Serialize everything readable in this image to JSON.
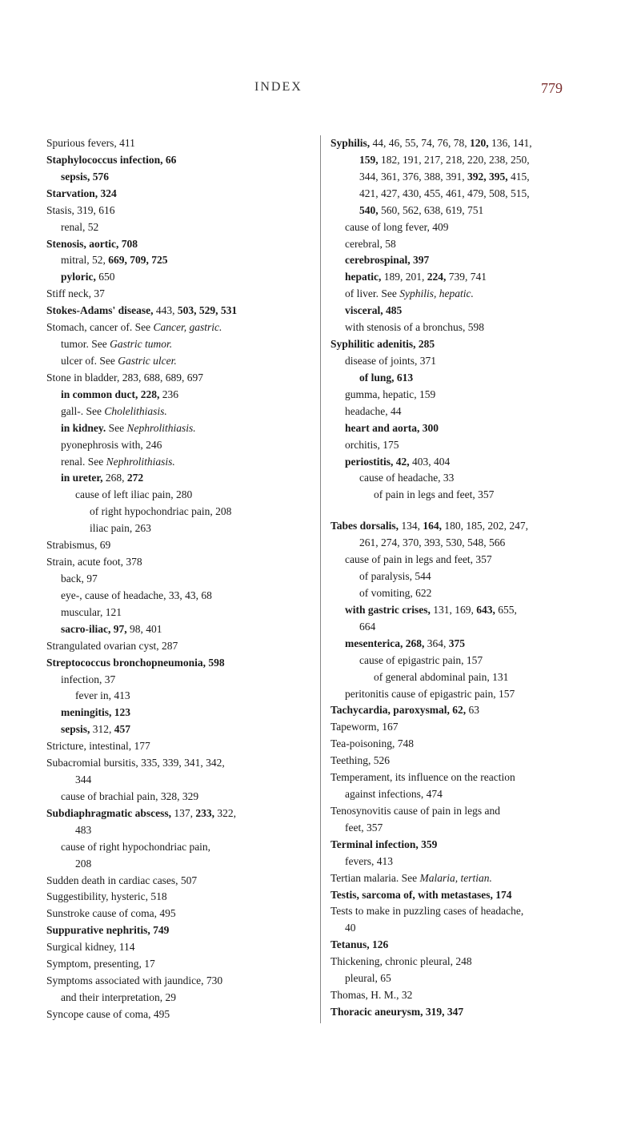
{
  "header": {
    "title": "INDEX",
    "pageNumber": "779"
  },
  "left": [
    {
      "t": "Spurious fevers, 411"
    },
    {
      "t": "Staphylococcus infection, 66",
      "b": "Staphylococcus infection, 66"
    },
    {
      "t": "sepsis, 576",
      "i": 1,
      "b": "sepsis, 576"
    },
    {
      "t": "Starvation, 324",
      "b": "Starvation, 324"
    },
    {
      "t": "Stasis, 319, 616"
    },
    {
      "t": "renal, 52",
      "i": 1
    },
    {
      "t": "Stenosis, aortic, 708",
      "b": "Stenosis, aortic, 708"
    },
    {
      "t": "mitral, 52, 669, 709, 725",
      "i": 1,
      "bp": [
        "669, 709, 725"
      ]
    },
    {
      "t": "pyloric, 650",
      "i": 1,
      "bp": [
        "pyloric,"
      ]
    },
    {
      "t": "Stiff neck, 37"
    },
    {
      "t": "Stokes-Adams' disease, 443, 503, 529, 531",
      "bp": [
        "Stokes-Adams' disease,",
        "503, 529, 531"
      ]
    },
    {
      "t": "Stomach, cancer of.   See Cancer, gastric.",
      "ip": [
        "Cancer, gastric."
      ]
    },
    {
      "t": "tumor.   See Gastric tumor.",
      "i": 1,
      "ip": [
        "Gastric tumor."
      ]
    },
    {
      "t": "ulcer of.   See Gastric ulcer.",
      "i": 1,
      "ip": [
        "Gastric ulcer."
      ]
    },
    {
      "t": "Stone in bladder, 283, 688, 689, 697"
    },
    {
      "t": "in common duct, 228, 236",
      "i": 1,
      "bp": [
        "in common duct, 228,"
      ]
    },
    {
      "t": "gall-.   See Cholelithiasis.",
      "i": 1,
      "ip": [
        "Cholelithiasis."
      ]
    },
    {
      "t": "in kidney.   See Nephrolithiasis.",
      "i": 1,
      "bp": [
        "in kidney."
      ],
      "ip": [
        "Nephrolithiasis."
      ]
    },
    {
      "t": "pyonephrosis with, 246",
      "i": 1
    },
    {
      "t": "renal.   See Nephrolithiasis.",
      "i": 1,
      "ip": [
        "Nephrolithiasis."
      ]
    },
    {
      "t": "in ureter, 268, 272",
      "i": 1,
      "bp": [
        "in ureter,",
        "272"
      ]
    },
    {
      "t": "cause of left iliac pain, 280",
      "i": 2
    },
    {
      "t": "of right hypochondriac pain, 208",
      "i": 3
    },
    {
      "t": "iliac pain, 263",
      "i": 3,
      "pre": "      "
    },
    {
      "t": "Strabismus, 69"
    },
    {
      "t": "Strain, acute foot, 378"
    },
    {
      "t": "back, 97",
      "i": 1
    },
    {
      "t": "eye-, cause of headache, 33, 43, 68",
      "i": 1
    },
    {
      "t": "muscular, 121",
      "i": 1
    },
    {
      "t": "sacro-iliac, 97, 98, 401",
      "i": 1,
      "bp": [
        "sacro-iliac, 97,"
      ]
    },
    {
      "t": "Strangulated ovarian cyst, 287"
    },
    {
      "t": "Streptococcus bronchopneumonia, 598",
      "b": "Streptococcus bronchopneumonia, 598"
    },
    {
      "t": "infection, 37",
      "i": 1
    },
    {
      "t": "fever in, 413",
      "i": 2
    },
    {
      "t": "meningitis, 123",
      "i": 1,
      "b": "meningitis, 123"
    },
    {
      "t": "sepsis, 312, 457",
      "i": 1,
      "bp": [
        "sepsis,",
        "457"
      ]
    },
    {
      "t": "Stricture, intestinal, 177"
    },
    {
      "t": "Subacromial bursitis, 335, 339, 341, 342,"
    },
    {
      "t": "344",
      "i": 2
    },
    {
      "t": "cause of brachial pain, 328, 329",
      "i": 1
    },
    {
      "t": "Subdiaphragmatic abscess, 137, 233, 322,",
      "bp": [
        "Subdiaphragmatic abscess,",
        "233,"
      ]
    },
    {
      "t": "483",
      "i": 2
    },
    {
      "t": "cause of right hypochondriac pain,",
      "i": 1
    },
    {
      "t": "208",
      "i": 2
    },
    {
      "t": "Sudden death in cardiac cases, 507"
    },
    {
      "t": "Suggestibility, hysteric, 518"
    },
    {
      "t": "Sunstroke cause of coma, 495"
    },
    {
      "t": "Suppurative nephritis, 749",
      "b": "Suppurative nephritis, 749"
    },
    {
      "t": "Surgical kidney, 114"
    },
    {
      "t": "Symptom, presenting, 17"
    },
    {
      "t": "Symptoms associated with jaundice, 730"
    },
    {
      "t": "and their interpretation, 29",
      "i": 1
    },
    {
      "t": "Syncope cause of coma, 495"
    }
  ],
  "right": [
    {
      "t": "Syphilis, 44, 46, 55, 74, 76, 78, 120, 136, 141,",
      "bp": [
        "Syphilis,",
        "120,"
      ]
    },
    {
      "t": "159, 182, 191, 217, 218, 220, 238, 250,",
      "i": 2,
      "bp": [
        "159,"
      ]
    },
    {
      "t": "344, 361, 376, 388, 391, 392, 395, 415,",
      "i": 2,
      "bp": [
        "392, 395,"
      ]
    },
    {
      "t": "421, 427, 430, 455, 461, 479, 508, 515,",
      "i": 2
    },
    {
      "t": "540, 560, 562, 638, 619, 751",
      "i": 2,
      "bp": [
        "540,"
      ]
    },
    {
      "t": "cause of long fever, 409",
      "i": 1
    },
    {
      "t": "cerebral, 58",
      "i": 1
    },
    {
      "t": "cerebrospinal, 397",
      "i": 1,
      "b": "cerebrospinal, 397"
    },
    {
      "t": "hepatic, 189, 201, 224, 739, 741",
      "i": 1,
      "bp": [
        "hepatic,",
        "224,"
      ]
    },
    {
      "t": "of liver.   See Syphilis, hepatic.",
      "i": 1,
      "ip": [
        "Syphilis, hepatic."
      ]
    },
    {
      "t": "visceral, 485",
      "i": 1,
      "b": "visceral, 485"
    },
    {
      "t": "with stenosis of a bronchus, 598",
      "i": 1
    },
    {
      "t": "Syphilitic adenitis, 285",
      "b": "Syphilitic adenitis, 285"
    },
    {
      "t": "disease of joints, 371",
      "i": 1
    },
    {
      "t": "of lung, 613",
      "i": 2,
      "b": "of lung, 613"
    },
    {
      "t": "gumma, hepatic, 159",
      "i": 1
    },
    {
      "t": "headache, 44",
      "i": 1
    },
    {
      "t": "heart and aorta, 300",
      "i": 1,
      "b": "heart and aorta, 300"
    },
    {
      "t": "orchitis, 175",
      "i": 1
    },
    {
      "t": "periostitis, 42, 403, 404",
      "i": 1,
      "bp": [
        "periostitis, 42,"
      ]
    },
    {
      "t": "cause of headache, 33",
      "i": 2
    },
    {
      "t": "of pain in legs and feet, 357",
      "i": 3
    },
    {
      "t": "Tabes dorsalis, 134, 164, 180, 185, 202, 247,",
      "gap": true,
      "bp": [
        "Tabes dorsalis,",
        "164,"
      ]
    },
    {
      "t": "261, 274, 370, 393, 530, 548, 566",
      "i": 2
    },
    {
      "t": "cause of pain in legs and feet, 357",
      "i": 1
    },
    {
      "t": "of paralysis, 544",
      "i": 2
    },
    {
      "t": "of vomiting, 622",
      "i": 2
    },
    {
      "t": "with gastric crises, 131, 169, 643, 655,",
      "i": 1,
      "bp": [
        "with gastric crises,",
        "643,"
      ]
    },
    {
      "t": "664",
      "i": 2
    },
    {
      "t": "mesenterica, 268, 364, 375",
      "i": 1,
      "bp": [
        "mesenterica, 268,",
        "375"
      ]
    },
    {
      "t": "cause of epigastric pain, 157",
      "i": 2
    },
    {
      "t": "of general abdominal pain, 131",
      "i": 3
    },
    {
      "t": "peritonitis cause of epigastric pain, 157",
      "i": 1
    },
    {
      "t": "Tachycardia, paroxysmal, 62, 63",
      "bp": [
        "Tachycardia, paroxysmal, 62,"
      ]
    },
    {
      "t": "Tapeworm, 167"
    },
    {
      "t": "Tea-poisoning, 748"
    },
    {
      "t": "Teething, 526"
    },
    {
      "t": "Temperament, its influence on the reaction"
    },
    {
      "t": "against infections, 474",
      "i": 1
    },
    {
      "t": "Tenosynovitis cause of pain in legs and"
    },
    {
      "t": "feet, 357",
      "i": 1
    },
    {
      "t": "Terminal infection, 359",
      "b": "Terminal infection, 359"
    },
    {
      "t": "fevers, 413",
      "i": 1
    },
    {
      "t": "Tertian malaria.   See Malaria, tertian.",
      "ip": [
        "Malaria, tertian."
      ]
    },
    {
      "t": "Testis, sarcoma of, with metastases, 174",
      "b": "Testis, sarcoma of, with metastases, 174"
    },
    {
      "t": "Tests to make in puzzling cases of headache,"
    },
    {
      "t": "40",
      "i": 1
    },
    {
      "t": "Tetanus, 126",
      "b": "Tetanus, 126"
    },
    {
      "t": "Thickening, chronic pleural, 248"
    },
    {
      "t": "pleural, 65",
      "i": 1
    },
    {
      "t": "Thomas, H. M., 32"
    },
    {
      "t": "Thoracic aneurysm, 319, 347",
      "b": "Thoracic aneurysm, 319, 347"
    }
  ]
}
